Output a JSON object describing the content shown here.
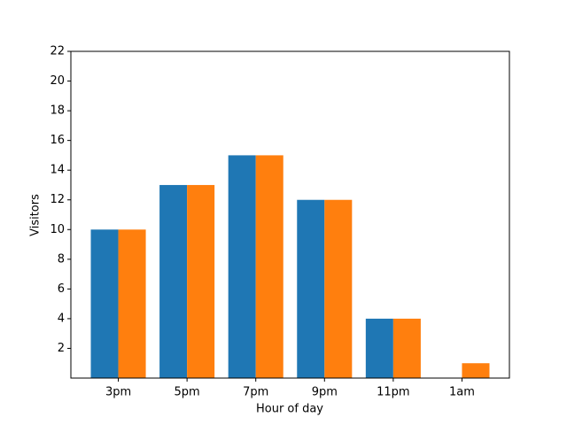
{
  "chart_data": {
    "type": "grouped-bar",
    "x_label": "Hour of day",
    "y_label": "Visitors",
    "categories": [
      "3pm",
      "5pm",
      "7pm",
      "9pm",
      "11pm",
      "1am"
    ],
    "series": [
      {
        "color": "#1f77b4",
        "values": [
          10,
          13,
          15,
          12,
          4,
          0
        ]
      },
      {
        "color": "#ff7f0e",
        "values": [
          10,
          13,
          15,
          12,
          4,
          1
        ]
      }
    ],
    "ylim": [
      0,
      22
    ],
    "yticks": [
      2,
      4,
      6,
      8,
      10,
      12,
      14,
      16,
      18,
      20,
      22
    ]
  }
}
